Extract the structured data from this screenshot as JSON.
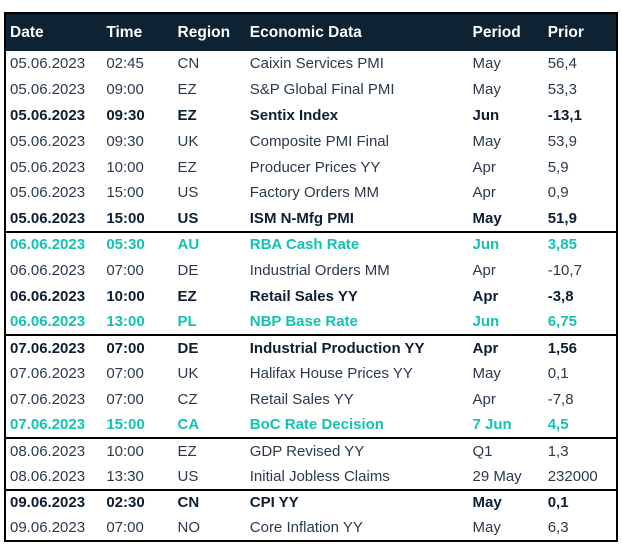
{
  "colors": {
    "header_bg": "#0d2233",
    "text": "#2a3a4d",
    "bold_text": "#0c1f33",
    "highlight_teal": "#12c3b1",
    "border": "#000000",
    "row_bg": "#ffffff"
  },
  "table": {
    "columns": [
      {
        "key": "date",
        "label": "Date"
      },
      {
        "key": "time",
        "label": "Time"
      },
      {
        "key": "region",
        "label": "Region"
      },
      {
        "key": "data",
        "label": "Economic Data"
      },
      {
        "key": "period",
        "label": "Period"
      },
      {
        "key": "prior",
        "label": "Prior"
      }
    ],
    "rows": [
      {
        "date": "05.06.2023",
        "time": "02:45",
        "region": "CN",
        "data": "Caixin Services PMI",
        "period": "May",
        "prior": "56,4",
        "style": "normal",
        "group_start": false
      },
      {
        "date": "05.06.2023",
        "time": "09:00",
        "region": "EZ",
        "data": "S&P Global Final PMI",
        "period": "May",
        "prior": "53,3",
        "style": "normal",
        "group_start": false
      },
      {
        "date": "05.06.2023",
        "time": "09:30",
        "region": "EZ",
        "data": "Sentix Index",
        "period": "Jun",
        "prior": "-13,1",
        "style": "bold",
        "group_start": false
      },
      {
        "date": "05.06.2023",
        "time": "09:30",
        "region": "UK",
        "data": "Composite PMI Final",
        "period": "May",
        "prior": "53,9",
        "style": "normal",
        "group_start": false
      },
      {
        "date": "05.06.2023",
        "time": "10:00",
        "region": "EZ",
        "data": "Producer Prices YY",
        "period": "Apr",
        "prior": "5,9",
        "style": "normal",
        "group_start": false
      },
      {
        "date": "05.06.2023",
        "time": "15:00",
        "region": "US",
        "data": "Factory Orders MM",
        "period": "Apr",
        "prior": "0,9",
        "style": "normal",
        "group_start": false
      },
      {
        "date": "05.06.2023",
        "time": "15:00",
        "region": "US",
        "data": "ISM N-Mfg PMI",
        "period": "May",
        "prior": "51,9",
        "style": "bold",
        "group_start": false
      },
      {
        "date": "06.06.2023",
        "time": "05:30",
        "region": "AU",
        "data": "RBA Cash Rate",
        "period": "Jun",
        "prior": "3,85",
        "style": "highlight",
        "group_start": true
      },
      {
        "date": "06.06.2023",
        "time": "07:00",
        "region": "DE",
        "data": "Industrial Orders MM",
        "period": "Apr",
        "prior": "-10,7",
        "style": "normal",
        "group_start": false
      },
      {
        "date": "06.06.2023",
        "time": "10:00",
        "region": "EZ",
        "data": "Retail Sales YY",
        "period": "Apr",
        "prior": "-3,8",
        "style": "bold",
        "group_start": false
      },
      {
        "date": "06.06.2023",
        "time": "13:00",
        "region": "PL",
        "data": "NBP Base Rate",
        "period": "Jun",
        "prior": "6,75",
        "style": "highlight",
        "group_start": false
      },
      {
        "date": "07.06.2023",
        "time": "07:00",
        "region": "DE",
        "data": "Industrial Production YY",
        "period": "Apr",
        "prior": "1,56",
        "style": "bold",
        "group_start": true
      },
      {
        "date": "07.06.2023",
        "time": "07:00",
        "region": "UK",
        "data": "Halifax House Prices YY",
        "period": "May",
        "prior": "0,1",
        "style": "normal",
        "group_start": false
      },
      {
        "date": "07.06.2023",
        "time": "07:00",
        "region": "CZ",
        "data": "Retail Sales YY",
        "period": "Apr",
        "prior": "-7,8",
        "style": "normal",
        "group_start": false
      },
      {
        "date": "07.06.2023",
        "time": "15:00",
        "region": "CA",
        "data": "BoC Rate Decision",
        "period": "7 Jun",
        "prior": "4,5",
        "style": "highlight",
        "group_start": false
      },
      {
        "date": "08.06.2023",
        "time": "10:00",
        "region": "EZ",
        "data": "GDP Revised YY",
        "period": "Q1",
        "prior": "1,3",
        "style": "normal",
        "group_start": true
      },
      {
        "date": "08.06.2023",
        "time": "13:30",
        "region": "US",
        "data": "Initial Jobless Claims",
        "period": "29 May",
        "prior": "232000",
        "style": "normal",
        "group_start": false
      },
      {
        "date": "09.06.2023",
        "time": "02:30",
        "region": "CN",
        "data": "CPI YY",
        "period": "May",
        "prior": "0,1",
        "style": "bold",
        "group_start": true
      },
      {
        "date": "09.06.2023",
        "time": "07:00",
        "region": "NO",
        "data": "Core Inflation YY",
        "period": "May",
        "prior": "6,3",
        "style": "normal",
        "group_start": false
      }
    ]
  }
}
